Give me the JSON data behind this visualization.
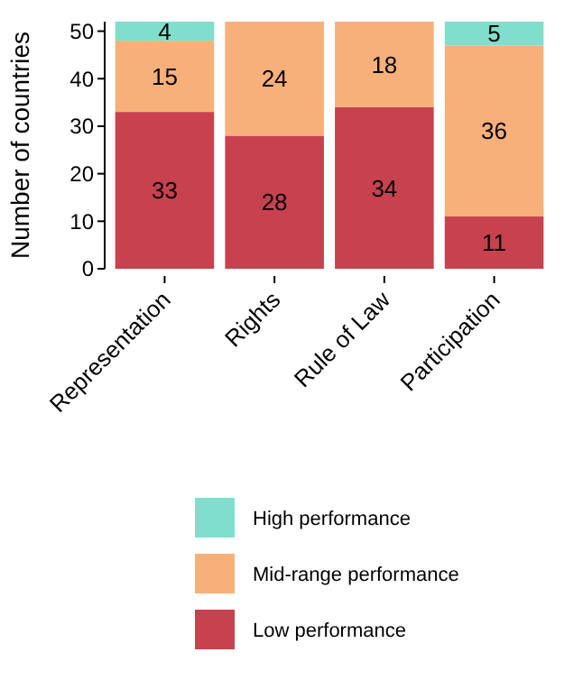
{
  "chart_data": {
    "type": "bar",
    "stacked": true,
    "ylabel": "Number of countries",
    "categories": [
      "Representation",
      "Rights",
      "Rule of Law",
      "Participation"
    ],
    "series": [
      {
        "name": "Low performance",
        "color": "#c8414f",
        "values": [
          33,
          28,
          34,
          11
        ]
      },
      {
        "name": "Mid-range performance",
        "color": "#f8b07a",
        "values": [
          15,
          24,
          18,
          36
        ]
      },
      {
        "name": "High performance",
        "color": "#7fdfcc",
        "values": [
          4,
          null,
          null,
          5
        ]
      }
    ],
    "ylim": [
      0,
      52
    ],
    "yticks": [
      0,
      10,
      20,
      30,
      40,
      50
    ],
    "data_labels": true,
    "legend": "bottom",
    "grid": false
  }
}
